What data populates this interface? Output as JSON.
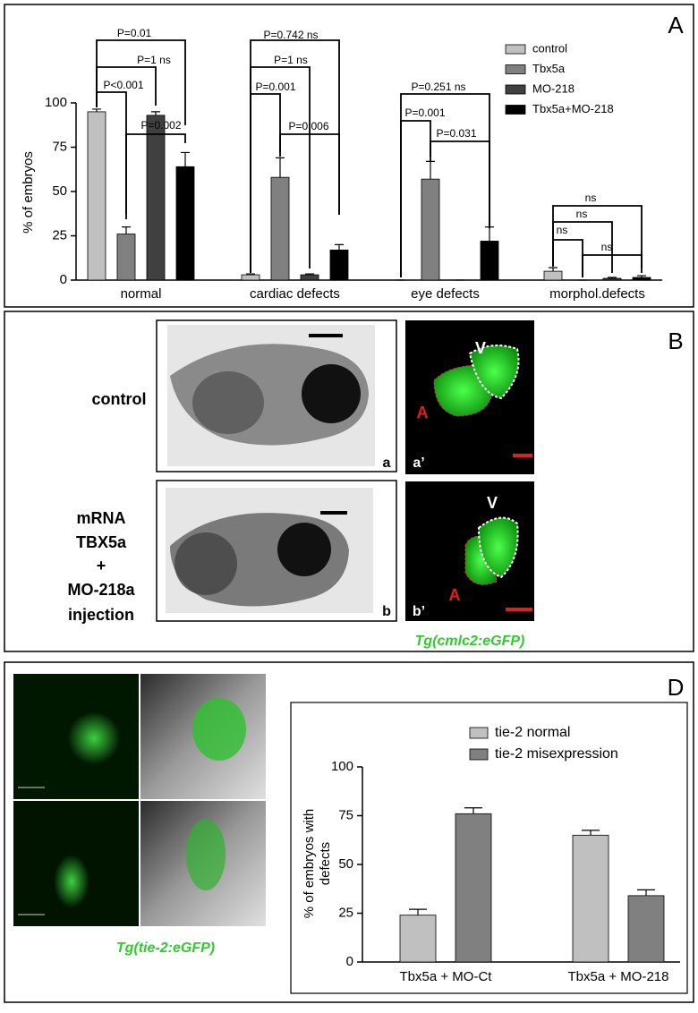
{
  "chart_data": [
    {
      "type": "bar",
      "panel_label": "A",
      "ylabel": [
        "% of embryos"
      ],
      "categories": [
        "normal",
        "cardiac defects",
        "eye defects",
        "morphol.defects"
      ],
      "series": [
        {
          "name": "control",
          "color": "#c0c0c0",
          "values": [
            95,
            3,
            0,
            5
          ],
          "errors": [
            1.5,
            0.5,
            0,
            2
          ]
        },
        {
          "name": "Tbx5a",
          "color": "#808080",
          "values": [
            26,
            58,
            57,
            0
          ],
          "errors": [
            4,
            11,
            10,
            0
          ]
        },
        {
          "name": "MO-218",
          "color": "#404040",
          "values": [
            93,
            3,
            0,
            1
          ],
          "errors": [
            2,
            0.5,
            0,
            0.5
          ]
        },
        {
          "name": "Tbx5a+MO-218",
          "color": "#000000",
          "values": [
            64,
            17,
            22,
            1.5
          ],
          "errors": [
            8,
            3,
            8,
            1
          ]
        }
      ],
      "ylim": [
        0,
        100
      ],
      "yticks": [
        0,
        25,
        50,
        75,
        100
      ],
      "annotations": [
        "P=0.01",
        "P=1 ns",
        "P<0.001",
        "P=0.002",
        "P=0.742 ns",
        "P=1 ns",
        "P=0.001",
        "P=0.006",
        "P=0.251 ns",
        "P=0.001",
        "P=0.031",
        "ns",
        "ns",
        "ns",
        "ns"
      ]
    },
    {
      "type": "bar",
      "panel_label": "D",
      "ylabel": [
        "% of embryos with",
        "defects"
      ],
      "categories": [
        "Tbx5a + MO-Ct",
        "Tbx5a + MO-218"
      ],
      "series": [
        {
          "name": "tie-2 normal",
          "color": "#c0c0c0",
          "values": [
            24,
            65
          ],
          "errors": [
            3,
            2.5
          ]
        },
        {
          "name": "tie-2 misexpression",
          "color": "#808080",
          "values": [
            76,
            34
          ],
          "errors": [
            3,
            3
          ]
        }
      ],
      "ylim": [
        0,
        100
      ],
      "yticks": [
        0,
        25,
        50,
        75,
        100
      ]
    }
  ],
  "panel_b": {
    "panel_label": "B",
    "row_labels": [
      [
        "control"
      ],
      [
        "mRNA",
        "TBX5a",
        "+",
        "MO-218a",
        "injection"
      ]
    ],
    "image_labels": [
      "a",
      "a’",
      "b",
      "b’"
    ],
    "chamber_labels": [
      "V",
      "A",
      "V",
      "A"
    ],
    "caption": "Tg(cmlc2:eGFP)"
  },
  "panel_d": {
    "caption": "Tg(tie-2:eGFP)"
  }
}
